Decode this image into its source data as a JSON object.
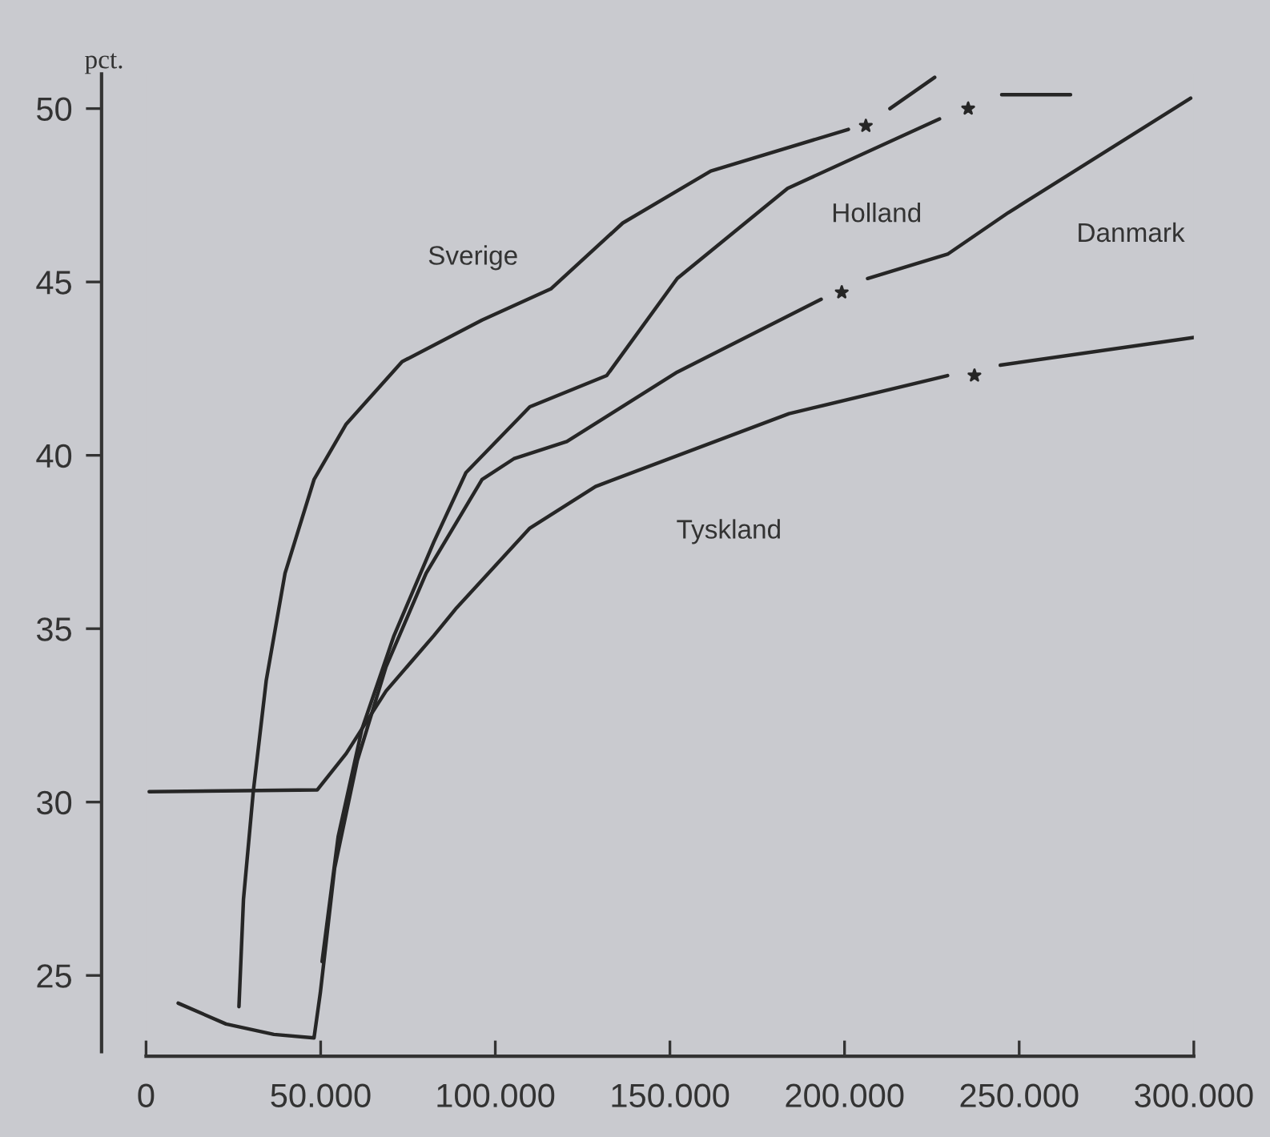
{
  "chart_data": {
    "type": "line",
    "ylabel": "pct.",
    "xlim": [
      0,
      300000
    ],
    "ylim": [
      22.8,
      51
    ],
    "xticks": [
      0,
      {
        "value": 50000,
        "label": "50.000"
      },
      {
        "value": 100000,
        "label": "100.000"
      },
      {
        "value": 150000,
        "label": "150.000"
      },
      {
        "value": 200000,
        "label": "200.000"
      },
      {
        "value": 250000,
        "label": "250.000"
      },
      {
        "value": 300000,
        "label": "300.000"
      }
    ],
    "yticks": [
      25,
      30,
      35,
      40,
      45,
      50
    ],
    "grid": false,
    "legend": false,
    "marker": "none",
    "line_style": "solid",
    "series": [
      {
        "name": "Sverige",
        "color": "#262626",
        "x": [
          26600,
          27900,
          30700,
          34400,
          39800,
          48100,
          57300,
          73300,
          96200,
          115900,
          136500,
          161700,
          201100,
          null,
          213000,
          225800
        ],
        "values": [
          24.1,
          27.2,
          30.3,
          33.5,
          36.6,
          39.3,
          40.9,
          42.7,
          43.9,
          44.8,
          46.7,
          48.2,
          49.4,
          null,
          50.0,
          50.9
        ]
      },
      {
        "name": "Holland",
        "color": "#262626",
        "x": [
          50400,
          55000,
          61800,
          71000,
          82400,
          91600,
          109900,
          131900,
          152100,
          183700,
          227200,
          null,
          245000,
          264700
        ],
        "values": [
          25.4,
          29.0,
          32.1,
          34.8,
          37.5,
          39.5,
          41.4,
          42.3,
          45.1,
          47.7,
          49.7,
          null,
          50.4,
          50.4
        ]
      },
      {
        "name": "Danmark",
        "color": "#262626",
        "x": [
          9200,
          22900,
          36600,
          48100,
          49900,
          54000,
          60500,
          68700,
          80200,
          96200,
          105300,
          120500,
          152100,
          193300,
          null,
          206600,
          229500,
          246900,
          299100
        ],
        "values": [
          24.2,
          23.6,
          23.3,
          23.2,
          24.5,
          28.1,
          31.2,
          33.9,
          36.6,
          39.3,
          39.9,
          40.4,
          42.4,
          44.5,
          null,
          45.1,
          45.8,
          47.0,
          50.3
        ]
      },
      {
        "name": "Tyskland",
        "color": "#262626",
        "x": [
          900,
          49000,
          57300,
          68700,
          82400,
          88900,
          109900,
          128700,
          184100,
          229500,
          null,
          244600,
          300000
        ],
        "values": [
          30.3,
          30.35,
          31.4,
          33.2,
          34.8,
          35.6,
          37.9,
          39.1,
          41.2,
          42.3,
          null,
          42.6,
          43.4
        ]
      },
      {
        "type": "scatter",
        "marker": "star",
        "color": "#262626",
        "x": [
          206100,
          235400,
          199200,
          237200
        ],
        "values": [
          49.5,
          50.0,
          44.7,
          42.3
        ]
      }
    ]
  }
}
